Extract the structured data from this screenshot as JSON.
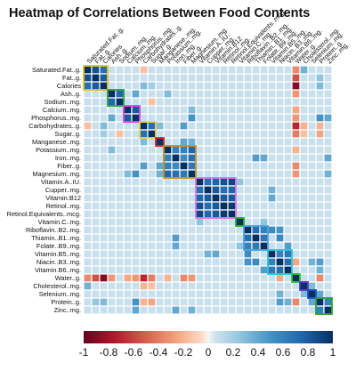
{
  "chart_data": {
    "type": "heatmap",
    "title": "Heatmap of Correlations Between Food Contents",
    "labels": [
      "Saturated.Fat..g.",
      "Fat..g.",
      "Calories",
      "Ash..g.",
      "Sodium..mg.",
      "Calcium..mg.",
      "Phosphorus..mg.",
      "Carbohydrates..g.",
      "Sugar..g.",
      "Manganese..mg.",
      "Potassium..mg.",
      "Iron..mg.",
      "Fiber..g.",
      "Magnesium..mg.",
      "Vitamin.A..IU.",
      "Cupper..mg.",
      "Vitamin.B12",
      "Retinol..mg.",
      "Retinol.Equivalents..mcg.",
      "Vitamin.C..mg.",
      "Riboflavin..B2..mg.",
      "Thiamin..B1..mg.",
      "Folate..B9..mg.",
      "Vitamin.B5..mg.",
      "Niacin..B3..mg.",
      "Vitamin.B6..mg.",
      "Water..g.",
      "Cholesterol..mg.",
      "Selenium..mg.",
      "Protein..g.",
      "Zinc..mg."
    ],
    "clusters": [
      {
        "start": 0,
        "end": 2,
        "color": "#e3c21c"
      },
      {
        "start": 3,
        "end": 4,
        "color": "#2e9e3a"
      },
      {
        "start": 5,
        "end": 6,
        "color": "#e040e0"
      },
      {
        "start": 7,
        "end": 8,
        "color": "#f0d040"
      },
      {
        "start": 9,
        "end": 9,
        "color": "#e02020"
      },
      {
        "start": 10,
        "end": 13,
        "color": "#c89018"
      },
      {
        "start": 14,
        "end": 18,
        "color": "#e070e8"
      },
      {
        "start": 19,
        "end": 19,
        "color": "#20b020"
      },
      {
        "start": 20,
        "end": 22,
        "color": "#4aa0e0"
      },
      {
        "start": 23,
        "end": 25,
        "color": "#20c8d8"
      },
      {
        "start": 26,
        "end": 26,
        "color": "#30c030"
      },
      {
        "start": 27,
        "end": 27,
        "color": "#6030d0"
      },
      {
        "start": 28,
        "end": 28,
        "color": "#1a50c0"
      },
      {
        "start": 29,
        "end": 30,
        "color": "#2aa030"
      }
    ],
    "highlights": [
      {
        "a": 1,
        "b": 2,
        "value": 0.8
      },
      {
        "a": 0,
        "b": 2,
        "value": 0.7
      },
      {
        "a": 0,
        "b": 1,
        "value": 0.85
      },
      {
        "a": 3,
        "b": 4,
        "value": 0.75
      },
      {
        "a": 3,
        "b": 6,
        "value": 0.4
      },
      {
        "a": 5,
        "b": 6,
        "value": 0.8
      },
      {
        "a": 7,
        "b": 8,
        "value": 0.7
      },
      {
        "a": 10,
        "b": 11,
        "value": 0.6
      },
      {
        "a": 10,
        "b": 12,
        "value": 0.6
      },
      {
        "a": 10,
        "b": 13,
        "value": 0.75
      },
      {
        "a": 11,
        "b": 12,
        "value": 0.55
      },
      {
        "a": 11,
        "b": 13,
        "value": 0.7
      },
      {
        "a": 12,
        "b": 13,
        "value": 0.65
      },
      {
        "a": 14,
        "b": 15,
        "value": 0.7
      },
      {
        "a": 14,
        "b": 16,
        "value": 0.75
      },
      {
        "a": 14,
        "b": 17,
        "value": 0.85
      },
      {
        "a": 14,
        "b": 18,
        "value": 0.9
      },
      {
        "a": 15,
        "b": 16,
        "value": 0.8
      },
      {
        "a": 15,
        "b": 17,
        "value": 0.7
      },
      {
        "a": 15,
        "b": 18,
        "value": 0.75
      },
      {
        "a": 16,
        "b": 17,
        "value": 0.8
      },
      {
        "a": 16,
        "b": 18,
        "value": 0.8
      },
      {
        "a": 17,
        "b": 18,
        "value": 0.95
      },
      {
        "a": 20,
        "b": 21,
        "value": 0.7
      },
      {
        "a": 20,
        "b": 22,
        "value": 0.6
      },
      {
        "a": 21,
        "b": 22,
        "value": 0.65
      },
      {
        "a": 23,
        "b": 24,
        "value": 0.6
      },
      {
        "a": 23,
        "b": 25,
        "value": 0.65
      },
      {
        "a": 24,
        "b": 25,
        "value": 0.7
      },
      {
        "a": 20,
        "b": 23,
        "value": 0.55
      },
      {
        "a": 20,
        "b": 24,
        "value": 0.5
      },
      {
        "a": 21,
        "b": 24,
        "value": 0.55
      },
      {
        "a": 22,
        "b": 25,
        "value": 0.45
      },
      {
        "a": 29,
        "b": 30,
        "value": 0.6
      },
      {
        "a": 27,
        "b": 28,
        "value": 0.3
      },
      {
        "a": 28,
        "b": 29,
        "value": 0.4
      },
      {
        "a": 26,
        "b": 2,
        "value": -0.9
      },
      {
        "a": 26,
        "b": 1,
        "value": -0.55
      },
      {
        "a": 26,
        "b": 0,
        "value": -0.35
      },
      {
        "a": 26,
        "b": 7,
        "value": -0.7
      },
      {
        "a": 26,
        "b": 8,
        "value": -0.4
      },
      {
        "a": 26,
        "b": 3,
        "value": -0.3
      },
      {
        "a": 26,
        "b": 5,
        "value": -0.25
      },
      {
        "a": 26,
        "b": 6,
        "value": -0.3
      },
      {
        "a": 26,
        "b": 12,
        "value": -0.35
      },
      {
        "a": 26,
        "b": 29,
        "value": -0.35
      },
      {
        "a": 26,
        "b": 10,
        "value": -0.2
      },
      {
        "a": 26,
        "b": 13,
        "value": -0.3
      },
      {
        "a": 26,
        "b": 24,
        "value": -0.25
      },
      {
        "a": 0,
        "b": 27,
        "value": 0.35
      },
      {
        "a": 1,
        "b": 29,
        "value": 0.25
      },
      {
        "a": 2,
        "b": 29,
        "value": 0.3
      },
      {
        "a": 6,
        "b": 29,
        "value": 0.5
      },
      {
        "a": 6,
        "b": 30,
        "value": 0.4
      },
      {
        "a": 6,
        "b": 13,
        "value": 0.5
      },
      {
        "a": 5,
        "b": 13,
        "value": 0.3
      },
      {
        "a": 7,
        "b": 12,
        "value": 0.45
      },
      {
        "a": 7,
        "b": 9,
        "value": 0.3
      },
      {
        "a": 9,
        "b": 12,
        "value": 0.4
      },
      {
        "a": 9,
        "b": 13,
        "value": 0.35
      },
      {
        "a": 11,
        "b": 21,
        "value": 0.45
      },
      {
        "a": 11,
        "b": 22,
        "value": 0.4
      },
      {
        "a": 11,
        "b": 30,
        "value": 0.4
      },
      {
        "a": 13,
        "b": 30,
        "value": 0.35
      },
      {
        "a": 24,
        "b": 29,
        "value": 0.45
      },
      {
        "a": 25,
        "b": 29,
        "value": 0.35
      },
      {
        "a": 28,
        "b": 24,
        "value": 0.35
      },
      {
        "a": 16,
        "b": 23,
        "value": 0.4
      },
      {
        "a": 15,
        "b": 23,
        "value": 0.35
      },
      {
        "a": 19,
        "b": 14,
        "value": 0.25
      },
      {
        "a": 19,
        "b": 22,
        "value": 0.25
      },
      {
        "a": 3,
        "b": 10,
        "value": 0.3
      },
      {
        "a": 8,
        "b": 4,
        "value": -0.15
      },
      {
        "a": 8,
        "b": 29,
        "value": -0.25
      },
      {
        "a": 8,
        "b": 27,
        "value": -0.15
      },
      {
        "a": 7,
        "b": 29,
        "value": -0.2
      },
      {
        "a": 7,
        "b": 27,
        "value": -0.2
      },
      {
        "a": 0,
        "b": 7,
        "value": -0.15
      },
      {
        "a": 2,
        "b": 7,
        "value": 0.3
      },
      {
        "a": 2,
        "b": 8,
        "value": 0.2
      }
    ],
    "color_scale": {
      "min": -1,
      "max": 1,
      "ticks": [
        "-1",
        "-0.8",
        "-0.6",
        "-0.4",
        "-0.2",
        "0",
        "0.2",
        "0.4",
        "0.6",
        "0.8",
        "1"
      ]
    },
    "colors": {
      "negative": "#67001f",
      "neutral": "#f7f7f7",
      "positive": "#053061",
      "grid": "#ffffff"
    }
  }
}
